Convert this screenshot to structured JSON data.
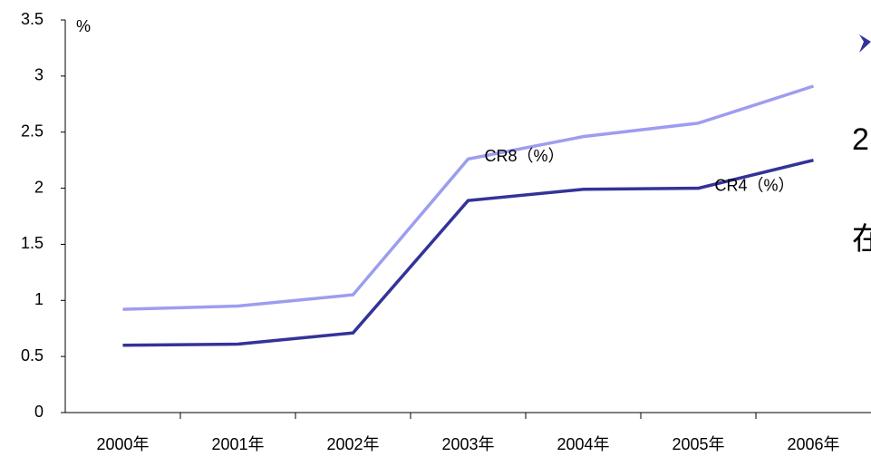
{
  "chart_data": {
    "type": "line",
    "y_label": "%",
    "categories": [
      "2000年",
      "2001年",
      "2002年",
      "2003年",
      "2004年",
      "2005年",
      "2006年"
    ],
    "series": [
      {
        "name": "CR8（%）",
        "color": "#9d9df0",
        "values": [
          0.92,
          0.95,
          1.05,
          2.26,
          2.46,
          2.58,
          2.91
        ]
      },
      {
        "name": "CR4（%）",
        "color": "#333399",
        "values": [
          0.6,
          0.61,
          0.71,
          1.89,
          1.99,
          2.0,
          2.25
        ]
      }
    ],
    "ylim": [
      0,
      3.5
    ],
    "yticks": [
      0,
      0.5,
      1,
      1.5,
      2,
      2.5,
      3,
      3.5
    ],
    "grid": false
  },
  "side_text": [
    "2",
    "在"
  ]
}
